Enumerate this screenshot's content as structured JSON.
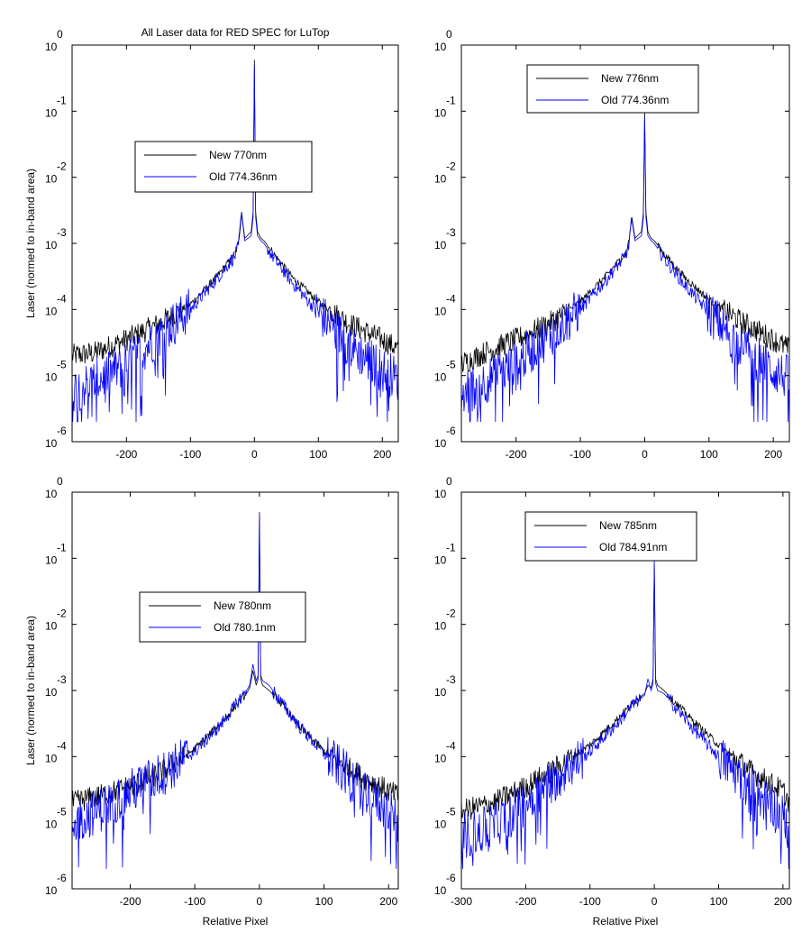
{
  "figure": {
    "title": "All Laser data for RED SPEC for LuTop"
  },
  "colors": {
    "new": "#000000",
    "old": "#0000ff",
    "axes": "#000000"
  },
  "chart_data": [
    {
      "type": "line",
      "panel": "top-left",
      "title": "All Laser data for RED SPEC for LuTop",
      "xlabel": "",
      "ylabel": "Laser (normed to in-band area)",
      "xlim": [
        -285,
        225
      ],
      "ylim": [
        1e-06,
        1
      ],
      "yscale": "log",
      "xticks": [
        -200,
        -100,
        0,
        100,
        200
      ],
      "yticks": [
        0,
        -1,
        -2,
        -3,
        -4,
        -5,
        -6
      ],
      "legend_position": "upper-left",
      "series": [
        {
          "name": "New 770nm",
          "color": "#000000",
          "x": [
            -285,
            -250,
            -200,
            -150,
            -100,
            -60,
            -30,
            -25,
            -20,
            -15,
            -5,
            -2,
            0,
            2,
            5,
            10,
            15,
            30,
            60,
            100,
            150,
            200,
            225
          ],
          "y": [
            2e-05,
            2.2e-05,
            3.5e-05,
            6e-05,
            0.00012,
            0.0003,
            0.0007,
            0.001,
            0.003,
            0.0012,
            0.0015,
            0.003,
            0.6,
            0.003,
            0.0015,
            0.0012,
            0.0011,
            0.0007,
            0.0003,
            0.00013,
            6e-05,
            3.5e-05,
            2.5e-05
          ]
        },
        {
          "name": "Old 774.36nm",
          "color": "#0000ff",
          "x": [
            -285,
            -250,
            -200,
            -150,
            -100,
            -60,
            -30,
            -25,
            -20,
            -15,
            -5,
            -2,
            0,
            2,
            5,
            10,
            15,
            30,
            60,
            100,
            150,
            200,
            225
          ],
          "y": [
            6e-06,
            8e-06,
            1.5e-05,
            4e-05,
            0.0001,
            0.00028,
            0.00065,
            0.0009,
            0.0028,
            0.0011,
            0.0013,
            0.0025,
            0.5,
            0.0025,
            0.0013,
            0.0011,
            0.001,
            0.0006,
            0.00025,
            9e-05,
            2.8e-05,
            1.2e-05,
            9e-06
          ]
        }
      ]
    },
    {
      "type": "line",
      "panel": "top-right",
      "title": "",
      "xlabel": "",
      "ylabel": "",
      "xlim": [
        -285,
        225
      ],
      "ylim": [
        1e-06,
        1
      ],
      "yscale": "log",
      "xticks": [
        -200,
        -100,
        0,
        100,
        200
      ],
      "yticks": [
        0,
        -1,
        -2,
        -3,
        -4,
        -5,
        -6
      ],
      "legend_position": "upper-center",
      "series": [
        {
          "name": "New 776nm",
          "color": "#000000",
          "x": [
            -285,
            -250,
            -200,
            -150,
            -100,
            -60,
            -30,
            -25,
            -20,
            -15,
            -5,
            -2,
            0,
            2,
            5,
            10,
            15,
            30,
            60,
            100,
            150,
            200,
            225
          ],
          "y": [
            1.5e-05,
            2.2e-05,
            3.5e-05,
            6e-05,
            0.00013,
            0.00032,
            0.0007,
            0.001,
            0.0025,
            0.0012,
            0.0015,
            0.003,
            0.1,
            0.003,
            0.0015,
            0.0012,
            0.0011,
            0.0007,
            0.00032,
            0.00014,
            6.5e-05,
            3.5e-05,
            2.5e-05
          ]
        },
        {
          "name": "Old 774.36nm",
          "color": "#0000ff",
          "x": [
            -285,
            -250,
            -200,
            -150,
            -100,
            -60,
            -30,
            -25,
            -20,
            -15,
            -5,
            -2,
            0,
            2,
            5,
            10,
            15,
            30,
            60,
            100,
            150,
            200,
            225
          ],
          "y": [
            5e-06,
            8e-06,
            1.5e-05,
            4e-05,
            0.0001,
            0.00028,
            0.00065,
            0.0009,
            0.0023,
            0.0011,
            0.0013,
            0.0025,
            0.08,
            0.0025,
            0.0013,
            0.0011,
            0.001,
            0.0006,
            0.00025,
            9e-05,
            2.8e-05,
            1.2e-05,
            9e-06
          ]
        }
      ]
    },
    {
      "type": "line",
      "panel": "bottom-left",
      "title": "",
      "xlabel": "Relative Pixel",
      "ylabel": "Laser (normed to in-band area)",
      "xlim": [
        -290,
        215
      ],
      "ylim": [
        1e-06,
        1
      ],
      "yscale": "log",
      "xticks": [
        -200,
        -100,
        0,
        100,
        200
      ],
      "yticks": [
        0,
        -1,
        -2,
        -3,
        -4,
        -5,
        -6
      ],
      "legend_position": "center-left",
      "series": [
        {
          "name": "New 780nm",
          "color": "#000000",
          "x": [
            -290,
            -250,
            -200,
            -150,
            -100,
            -60,
            -30,
            -20,
            -15,
            -10,
            -5,
            -2,
            0,
            2,
            5,
            10,
            15,
            30,
            60,
            100,
            150,
            200,
            215
          ],
          "y": [
            2e-05,
            2.5e-05,
            3.5e-05,
            6e-05,
            0.00013,
            0.00032,
            0.0007,
            0.0009,
            0.0011,
            0.002,
            0.0012,
            0.0015,
            0.5,
            0.0015,
            0.0012,
            0.0011,
            0.001,
            0.0007,
            0.0003,
            0.00012,
            5.5e-05,
            3e-05,
            2.5e-05
          ]
        },
        {
          "name": "Old 780.1nm",
          "color": "#0000ff",
          "x": [
            -290,
            -250,
            -200,
            -150,
            -100,
            -60,
            -30,
            -20,
            -15,
            -10,
            -5,
            -2,
            0,
            2,
            5,
            10,
            15,
            30,
            60,
            100,
            150,
            200,
            215
          ],
          "y": [
            1e-05,
            1.5e-05,
            3e-05,
            5.5e-05,
            0.00012,
            0.0003,
            0.00075,
            0.001,
            0.0012,
            0.0025,
            0.0014,
            0.0017,
            0.45,
            0.0017,
            0.0014,
            0.0013,
            0.0012,
            0.00075,
            0.0003,
            0.00011,
            4e-05,
            1.5e-05,
            1e-05
          ]
        }
      ]
    },
    {
      "type": "line",
      "panel": "bottom-right",
      "title": "",
      "xlabel": "Relative Pixel",
      "ylabel": "",
      "xlim": [
        -300,
        210
      ],
      "ylim": [
        1e-06,
        1
      ],
      "yscale": "log",
      "xticks": [
        -300,
        -200,
        -100,
        0,
        100,
        200
      ],
      "yticks": [
        0,
        -1,
        -2,
        -3,
        -4,
        -5,
        -6
      ],
      "legend_position": "upper-center",
      "series": [
        {
          "name": "New 785nm",
          "color": "#000000",
          "x": [
            -300,
            -250,
            -200,
            -150,
            -100,
            -60,
            -30,
            -15,
            -10,
            -5,
            -2,
            0,
            2,
            5,
            10,
            15,
            30,
            60,
            100,
            150,
            200,
            210
          ],
          "y": [
            1.5e-05,
            2e-05,
            3.5e-05,
            7e-05,
            0.00015,
            0.00035,
            0.0007,
            0.0009,
            0.0012,
            0.0011,
            0.0015,
            0.08,
            0.0015,
            0.0012,
            0.0011,
            0.001,
            0.0007,
            0.00035,
            0.00015,
            6e-05,
            3e-05,
            2e-05
          ]
        },
        {
          "name": "Old 784.91nm",
          "color": "#0000ff",
          "x": [
            -300,
            -250,
            -200,
            -150,
            -100,
            -60,
            -30,
            -15,
            -10,
            -5,
            -2,
            0,
            2,
            5,
            10,
            15,
            30,
            60,
            100,
            150,
            200,
            210
          ],
          "y": [
            6e-06,
            9e-06,
            2e-05,
            5e-05,
            0.00012,
            0.0003,
            0.00065,
            0.00085,
            0.0015,
            0.001,
            0.0013,
            0.1,
            0.0013,
            0.001,
            0.00095,
            0.0009,
            0.0006,
            0.00027,
            0.0001,
            3.5e-05,
            1.2e-05,
            7e-06
          ]
        }
      ]
    }
  ]
}
